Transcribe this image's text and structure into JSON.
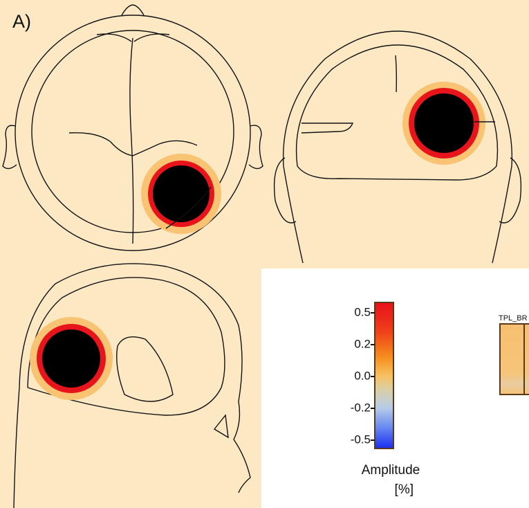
{
  "panel_label": "A)",
  "colorbar": {
    "ticks": [
      "0.5",
      "0.2",
      "0.0",
      "-0.2",
      "-0.5"
    ],
    "title": "Amplitude",
    "unit": "[%]"
  },
  "thumbnail": {
    "label": "TPL_BR"
  }
}
